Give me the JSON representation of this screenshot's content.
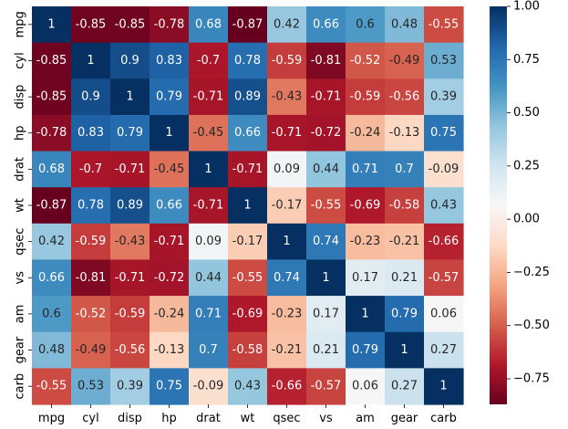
{
  "chart_data": {
    "type": "heatmap",
    "title": "",
    "xlabel": "",
    "ylabel": "",
    "categories": [
      "mpg",
      "cyl",
      "disp",
      "hp",
      "drat",
      "wt",
      "qsec",
      "vs",
      "am",
      "gear",
      "carb"
    ],
    "matrix": [
      [
        1,
        -0.85,
        -0.85,
        -0.78,
        0.68,
        -0.87,
        0.42,
        0.66,
        0.6,
        0.48,
        -0.55
      ],
      [
        -0.85,
        1,
        0.9,
        0.83,
        -0.7,
        0.78,
        -0.59,
        -0.81,
        -0.52,
        -0.49,
        0.53
      ],
      [
        -0.85,
        0.9,
        1,
        0.79,
        -0.71,
        0.89,
        -0.43,
        -0.71,
        -0.59,
        -0.56,
        0.39
      ],
      [
        -0.78,
        0.83,
        0.79,
        1,
        -0.45,
        0.66,
        -0.71,
        -0.72,
        -0.24,
        -0.13,
        0.75
      ],
      [
        0.68,
        -0.7,
        -0.71,
        -0.45,
        1,
        -0.71,
        0.09,
        0.44,
        0.71,
        0.7,
        -0.09
      ],
      [
        -0.87,
        0.78,
        0.89,
        0.66,
        -0.71,
        1,
        -0.17,
        -0.55,
        -0.69,
        -0.58,
        0.43
      ],
      [
        0.42,
        -0.59,
        -0.43,
        -0.71,
        0.09,
        -0.17,
        1,
        0.74,
        -0.23,
        -0.21,
        -0.66
      ],
      [
        0.66,
        -0.81,
        -0.71,
        -0.72,
        0.44,
        -0.55,
        0.74,
        1,
        0.17,
        0.21,
        -0.57
      ],
      [
        0.6,
        -0.52,
        -0.59,
        -0.24,
        0.71,
        -0.69,
        -0.23,
        0.17,
        1,
        0.79,
        0.06
      ],
      [
        0.48,
        -0.49,
        -0.56,
        -0.13,
        0.7,
        -0.58,
        -0.21,
        0.21,
        0.79,
        1,
        0.27
      ],
      [
        -0.55,
        0.53,
        0.39,
        0.75,
        -0.09,
        0.43,
        -0.66,
        -0.57,
        0.06,
        0.27,
        1
      ]
    ],
    "cell_labels": [
      [
        "1",
        "-0.85",
        "-0.85",
        "-0.78",
        "0.68",
        "-0.87",
        "0.42",
        "0.66",
        "0.6",
        "0.48",
        "-0.55"
      ],
      [
        "-0.85",
        "1",
        "0.9",
        "0.83",
        "-0.7",
        "0.78",
        "-0.59",
        "-0.81",
        "-0.52",
        "-0.49",
        "0.53"
      ],
      [
        "-0.85",
        "0.9",
        "1",
        "0.79",
        "-0.71",
        "0.89",
        "-0.43",
        "-0.71",
        "-0.59",
        "-0.56",
        "0.39"
      ],
      [
        "-0.78",
        "0.83",
        "0.79",
        "1",
        "-0.45",
        "0.66",
        "-0.71",
        "-0.72",
        "-0.24",
        "-0.13",
        "0.75"
      ],
      [
        "0.68",
        "-0.7",
        "-0.71",
        "-0.45",
        "1",
        "-0.71",
        "0.09",
        "0.44",
        "0.71",
        "0.7",
        "-0.09"
      ],
      [
        "-0.87",
        "0.78",
        "0.89",
        "0.66",
        "-0.71",
        "1",
        "-0.17",
        "-0.55",
        "-0.69",
        "-0.58",
        "0.43"
      ],
      [
        "0.42",
        "-0.59",
        "-0.43",
        "-0.71",
        "0.09",
        "-0.17",
        "1",
        "0.74",
        "-0.23",
        "-0.21",
        "-0.66"
      ],
      [
        "0.66",
        "-0.81",
        "-0.71",
        "-0.72",
        "0.44",
        "-0.55",
        "0.74",
        "1",
        "0.17",
        "0.21",
        "-0.57"
      ],
      [
        "0.6",
        "-0.52",
        "-0.59",
        "-0.24",
        "0.71",
        "-0.69",
        "-0.23",
        "0.17",
        "1",
        "0.79",
        "0.06"
      ],
      [
        "0.48",
        "-0.49",
        "-0.56",
        "-0.13",
        "0.7",
        "-0.58",
        "-0.21",
        "0.21",
        "0.79",
        "1",
        "0.27"
      ],
      [
        "-0.55",
        "0.53",
        "0.39",
        "0.75",
        "-0.09",
        "0.43",
        "-0.66",
        "-0.57",
        "0.06",
        "0.27",
        "1"
      ]
    ],
    "colorbar": {
      "vmin": -0.87,
      "vmax": 1.0,
      "ticks": [
        1.0,
        0.75,
        0.5,
        0.25,
        0.0,
        -0.25,
        -0.5,
        -0.75
      ],
      "tick_labels": [
        "1.00",
        "0.75",
        "0.50",
        "0.25",
        "0.00",
        "−0.25",
        "−0.50",
        "−0.75"
      ],
      "colormap": "RdBu",
      "colormap_stops": [
        "#67001f",
        "#b2182b",
        "#d6604d",
        "#f4a582",
        "#fddbc7",
        "#f7f7f7",
        "#d1e5f0",
        "#92c5de",
        "#4393c3",
        "#2166ac",
        "#053061"
      ]
    }
  }
}
